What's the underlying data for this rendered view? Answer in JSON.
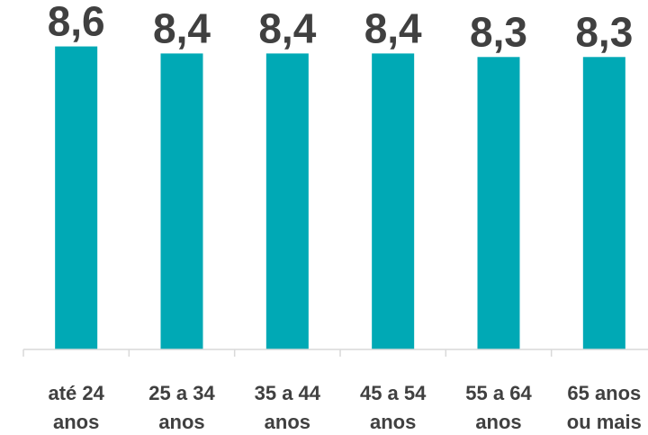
{
  "chart_data": {
    "type": "bar",
    "categories": [
      [
        "até 24",
        "anos"
      ],
      [
        "25 a 34",
        "anos"
      ],
      [
        "35 a 44",
        "anos"
      ],
      [
        "45 a 54",
        "anos"
      ],
      [
        "55 a 64",
        "anos"
      ],
      [
        "65 anos",
        "ou mais"
      ]
    ],
    "values": [
      8.6,
      8.4,
      8.4,
      8.4,
      8.3,
      8.3
    ],
    "value_labels": [
      "8,6",
      "8,4",
      "8,4",
      "8,4",
      "8,3",
      "8,3"
    ],
    "bar_color": "#00a9b5",
    "title": "",
    "xlabel": "",
    "ylabel": "",
    "ylim": [
      0,
      9.1
    ],
    "grid": false
  }
}
